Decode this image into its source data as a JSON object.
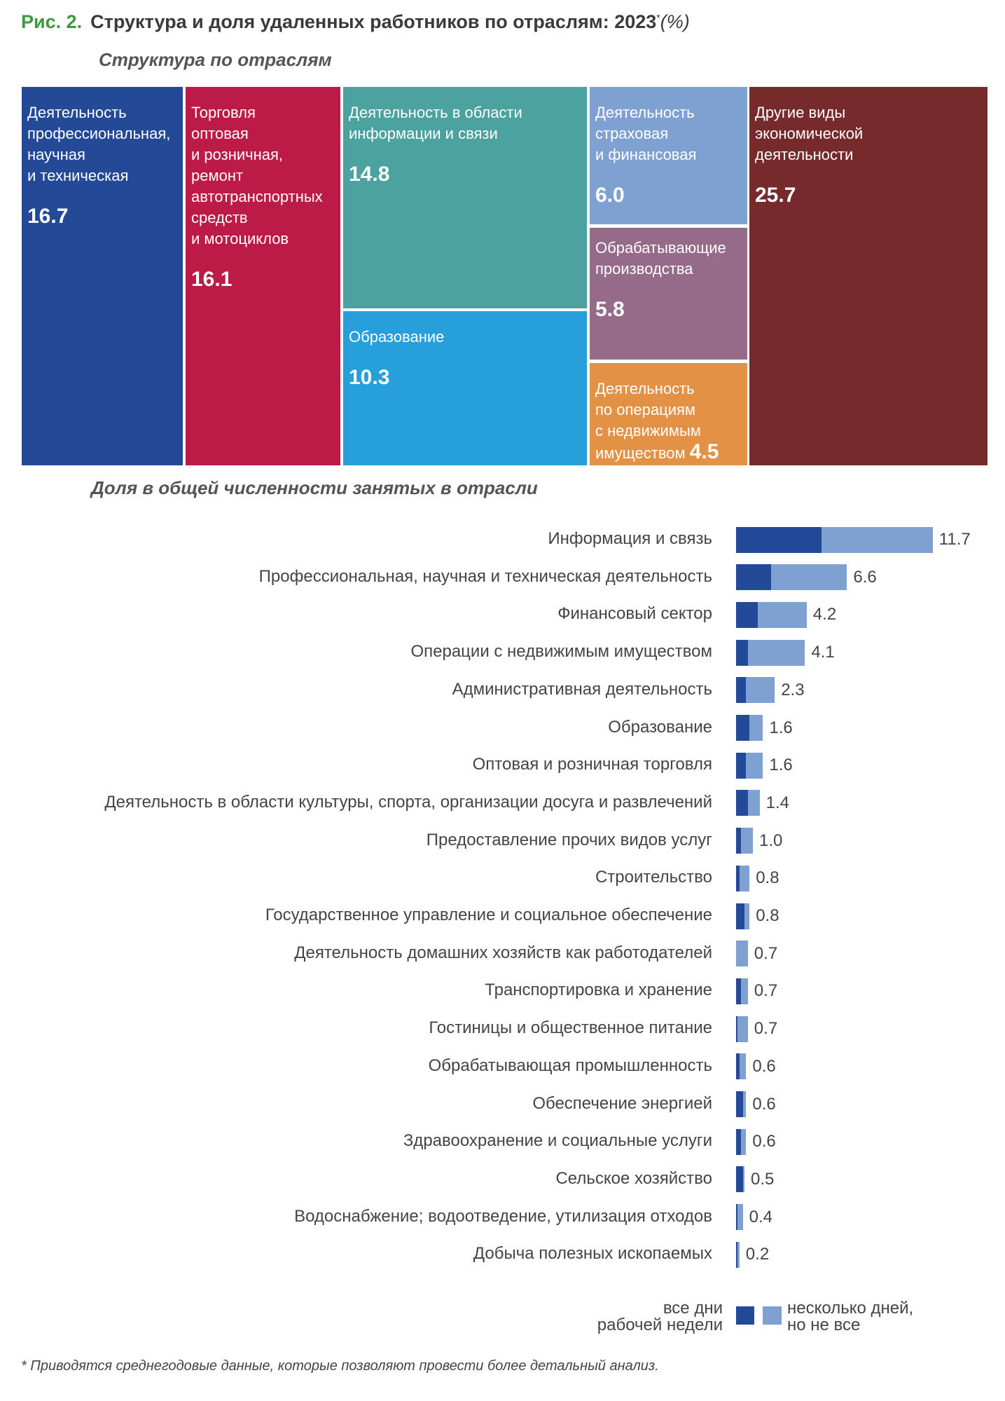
{
  "title": {
    "fig": "Рис. 2.",
    "text": "Структура и доля удаленных работников по отраслям: 2023",
    "mark": "*",
    "unit": "(%)"
  },
  "chart_data": [
    {
      "type": "treemap",
      "title": "Структура по отраслям",
      "colors": [
        "#244a97",
        "#bc1a47",
        "#4ba29e",
        "#279fda",
        "#7fa1d2",
        "#966b89",
        "#e39245",
        "#772a2c"
      ],
      "items": [
        {
          "label": "Деятельность\nпрофессиональная,\nнаучная\nи техническая",
          "value": 16.7
        },
        {
          "label": "Торговля\nоптовая\nи розничная,\nремонт\nавтотранспортных\nсредств\nи мотоциклов",
          "value": 16.1
        },
        {
          "label": "Деятельность в области\nинформации и связи",
          "value": 14.8
        },
        {
          "label": "Образование",
          "value": 10.3
        },
        {
          "label": "Деятельность\nстраховая\nи финансовая",
          "value": 6.0
        },
        {
          "label": "Обрабатывающие\nпроизводства",
          "value": 5.8
        },
        {
          "label": "Деятельность\nпо операциям\nс недвижимым\nимуществом",
          "value": 4.5
        },
        {
          "label": "Другие виды\nэкономической\nдеятельности",
          "value": 25.7
        }
      ]
    },
    {
      "type": "bar",
      "orientation": "horizontal",
      "stacked": true,
      "title": "Доля в общей численности занятых в отрасли",
      "categories": [
        "Информация и связь",
        "Профессиональная, научная и техническая деятельность",
        "Финансовый сектор",
        "Операции с недвижимым имуществом",
        "Административная деятельность",
        "Образование",
        "Оптовая и розничная торговля",
        "Деятельность в области культуры, спорта, организации досуга и развлечений",
        "Предоставление прочих видов услуг",
        "Строительство",
        "Государственное управление и социальное обеспечение",
        "Деятельность домашних хозяйств как работодателей",
        "Транспортировка и хранение",
        "Гостиницы и общественное питание",
        "Обрабатывающая промышленность",
        "Обеспечение энергией",
        "Здравоохранение и социальные услуги",
        "Сельское хозяйство",
        "Водоснабжение; водоотведение, утилизация отходов",
        "Добыча полезных ископаемых"
      ],
      "totals": [
        11.7,
        6.6,
        4.2,
        4.1,
        2.3,
        1.6,
        1.6,
        1.4,
        1.0,
        0.8,
        0.8,
        0.7,
        0.7,
        0.7,
        0.6,
        0.6,
        0.6,
        0.5,
        0.4,
        0.2
      ],
      "series": [
        {
          "name": "все дни рабочей недели",
          "color": "#234a98",
          "values": [
            5.1,
            2.1,
            1.3,
            0.7,
            0.6,
            0.8,
            0.6,
            0.7,
            0.3,
            0.2,
            0.5,
            0.0,
            0.3,
            0.1,
            0.2,
            0.4,
            0.3,
            0.4,
            0.1,
            0.1
          ]
        },
        {
          "name": "несколько дней, но не все",
          "color": "#7fa1d2",
          "values": [
            6.6,
            4.5,
            2.9,
            3.4,
            1.7,
            0.8,
            1.0,
            0.7,
            0.7,
            0.6,
            0.3,
            0.7,
            0.4,
            0.6,
            0.4,
            0.2,
            0.3,
            0.1,
            0.3,
            0.1
          ]
        }
      ],
      "legend": {
        "left": "все дни\nрабочей недели",
        "right": "несколько дней,\nно не все",
        "placement": "bottom-right"
      }
    }
  ],
  "footnote": "* Приводятся среднегодовые данные, которые позволяют провести более детальный анализ."
}
